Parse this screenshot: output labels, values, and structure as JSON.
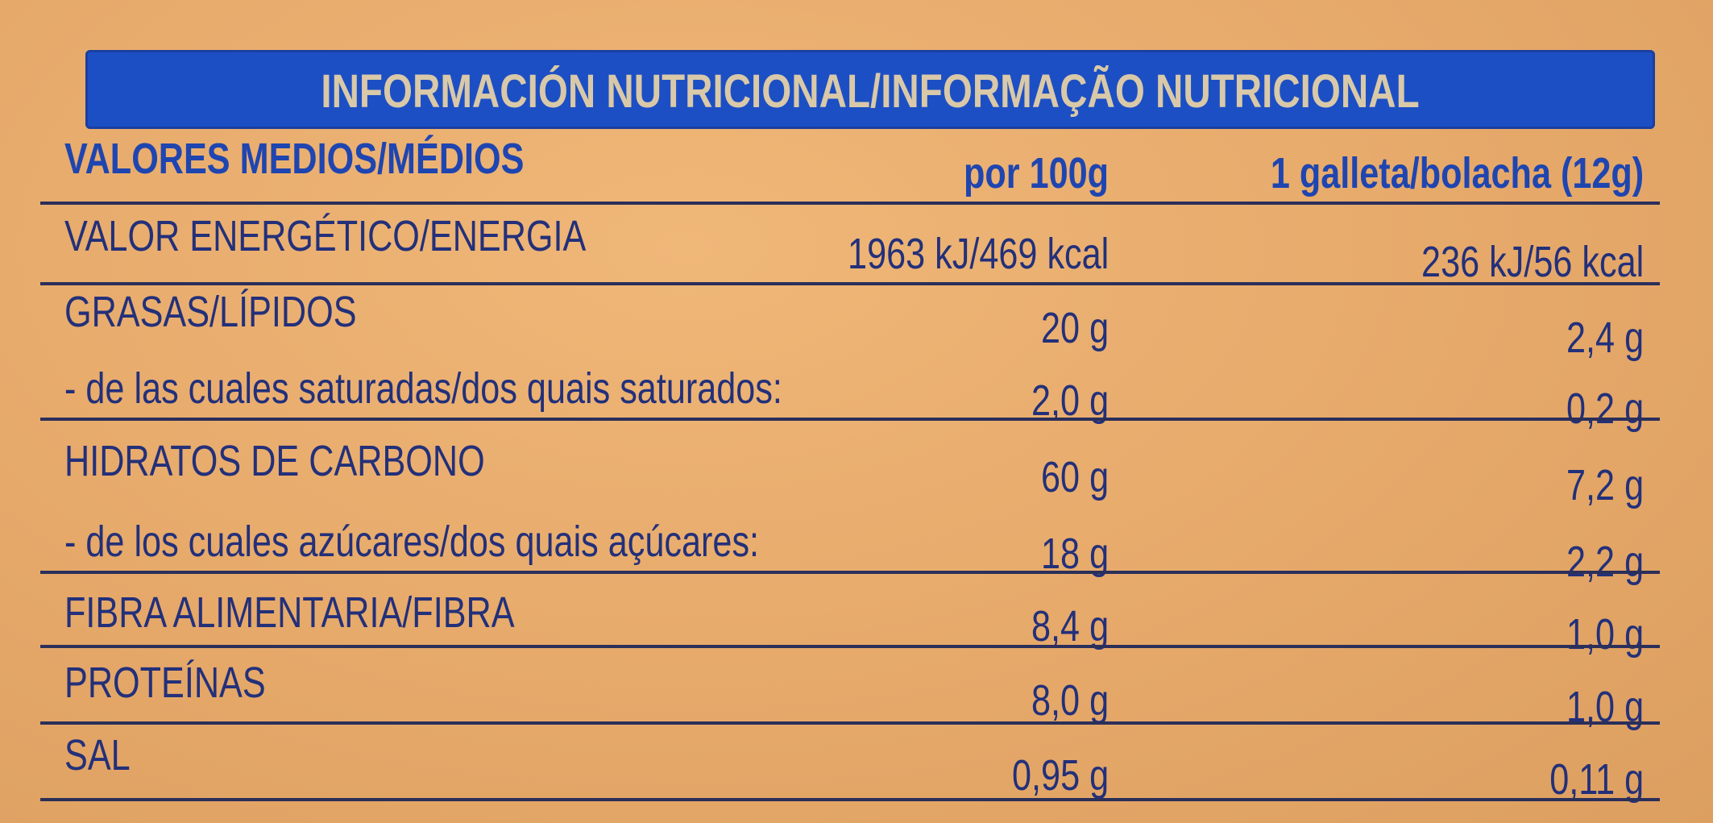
{
  "title": "INFORMACIÓN NUTRICIONAL/INFORMAÇÃO NUTRICIONAL",
  "columns": {
    "label": "VALORES MEDIOS/MÉDIOS",
    "per100": "por 100g",
    "perUnit": "1 galleta/bolacha (12g)"
  },
  "rows": [
    {
      "label": "VALOR ENERGÉTICO/ENERGIA",
      "per100": "1963 kJ/469 kcal",
      "perUnit": "236 kJ/56 kcal"
    },
    {
      "label": "GRASAS/LÍPIDOS",
      "per100": "20 g",
      "perUnit": "2,4 g"
    },
    {
      "label": "- de las cuales saturadas/dos quais saturados:",
      "per100": "2,0 g",
      "perUnit": "0,2 g"
    },
    {
      "label": "HIDRATOS DE CARBONO",
      "per100": "60 g",
      "perUnit": "7,2 g"
    },
    {
      "label": "- de los cuales azúcares/dos quais açúcares:",
      "per100": "18 g",
      "perUnit": "2,2 g"
    },
    {
      "label": "FIBRA ALIMENTARIA/FIBRA",
      "per100": "8,4 g",
      "perUnit": "1,0 g"
    },
    {
      "label": "PROTEÍNAS",
      "per100": "8,0 g",
      "perUnit": "1,0 g"
    },
    {
      "label": "SAL",
      "per100": "0,95 g",
      "perUnit": "0,11 g"
    }
  ],
  "colors": {
    "header": "#1d4fc4",
    "text": "#23307a",
    "background": "#e6a96a"
  }
}
